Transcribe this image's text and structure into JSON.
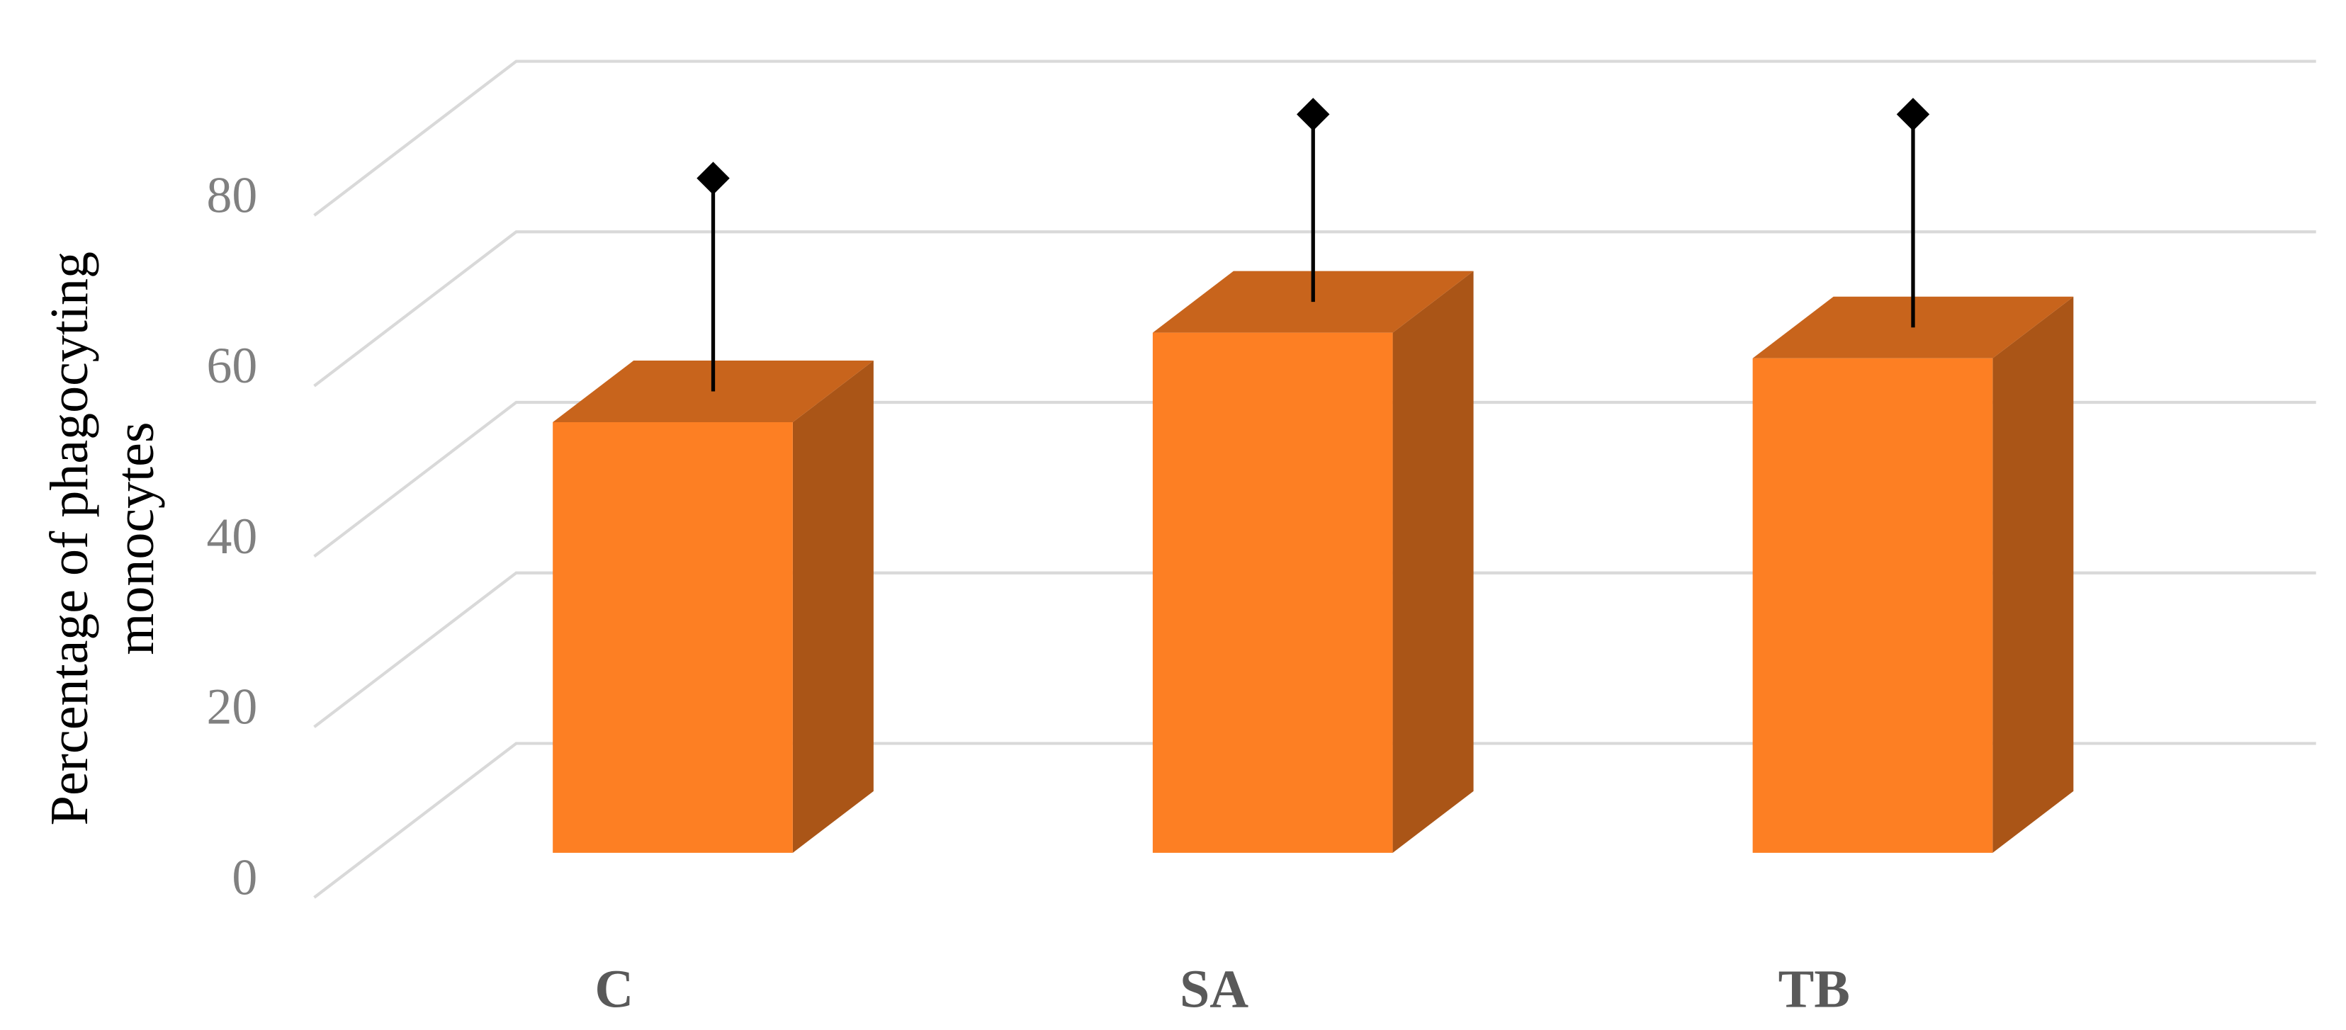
{
  "chart_data": {
    "type": "bar3d",
    "y_label": [
      "Percentage of phagocyting",
      "monocytes"
    ],
    "categories": [
      "C",
      "SA",
      "TB"
    ],
    "values": [
      50.5,
      61,
      58
    ],
    "errors": [
      25,
      22,
      25
    ],
    "color": "#fd7f23",
    "ylim": [
      0,
      80
    ],
    "yticks": [
      0,
      20,
      40,
      60,
      80
    ],
    "grid": true
  }
}
